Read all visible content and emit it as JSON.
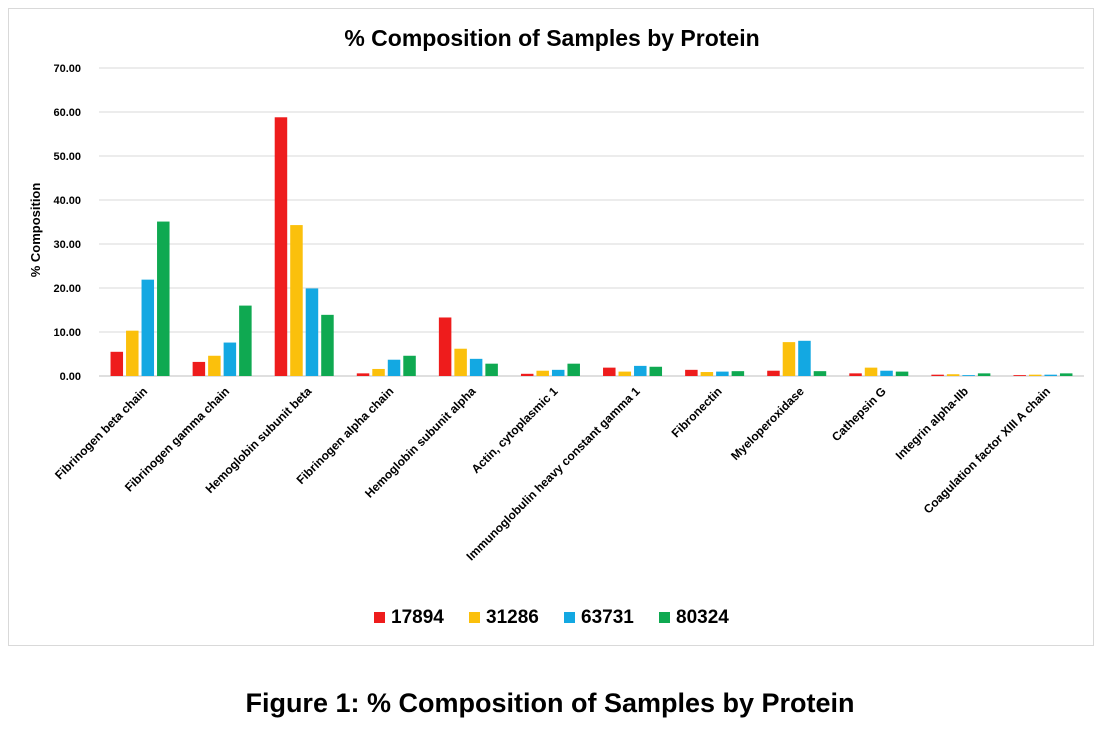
{
  "caption": "Figure 1: % Composition of Samples by Protein",
  "chart_data": {
    "type": "bar",
    "title": "% Composition of Samples by Protein",
    "xlabel": "",
    "ylabel": "% Composition",
    "ylim": [
      0,
      70
    ],
    "yticks": [
      "0.00",
      "10.00",
      "20.00",
      "30.00",
      "40.00",
      "50.00",
      "60.00",
      "70.00"
    ],
    "grid": true,
    "legend_position": "bottom",
    "categories": [
      "Fibrinogen beta chain",
      "Fibrinogen gamma chain",
      "Hemoglobin subunit beta",
      "Fibrinogen alpha chain",
      "Hemoglobin subunit alpha",
      "Actin, cytoplasmic 1",
      "Immunoglobulin heavy constant gamma 1",
      "Fibronectin",
      "Myeloperoxidase",
      "Cathepsin G",
      "Integrin alpha-IIb",
      "Coagulation factor XIII A chain"
    ],
    "series": [
      {
        "name": "17894",
        "color": "#ee1c1c",
        "values": [
          5.5,
          3.2,
          58.8,
          0.6,
          13.3,
          0.5,
          1.9,
          1.4,
          1.2,
          0.6,
          0.3,
          0.2
        ]
      },
      {
        "name": "31286",
        "color": "#fbc00c",
        "values": [
          10.3,
          4.6,
          34.3,
          1.6,
          6.2,
          1.2,
          1.0,
          0.9,
          7.7,
          1.9,
          0.4,
          0.3
        ]
      },
      {
        "name": "63731",
        "color": "#13a8e2",
        "values": [
          21.9,
          7.6,
          19.9,
          3.7,
          3.9,
          1.4,
          2.3,
          1.0,
          8.0,
          1.2,
          0.2,
          0.3
        ]
      },
      {
        "name": "80324",
        "color": "#0fa951",
        "values": [
          35.1,
          16.0,
          13.9,
          4.6,
          2.8,
          2.8,
          2.1,
          1.1,
          1.1,
          1.0,
          0.6,
          0.6
        ]
      }
    ]
  }
}
